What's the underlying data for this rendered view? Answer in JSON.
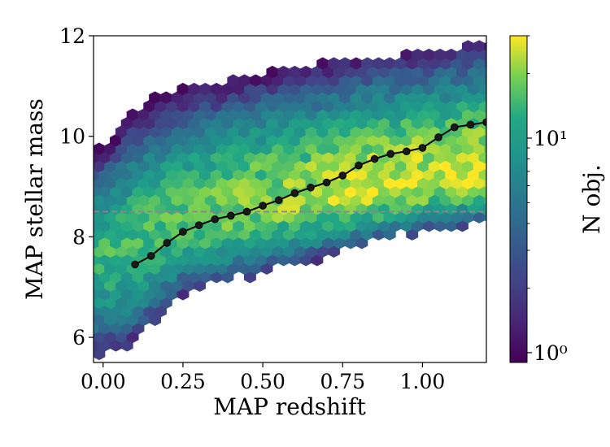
{
  "chart_data": {
    "type": "heatmap",
    "subtype": "hexbin-density-with-median-line",
    "xlabel": "MAP redshift",
    "ylabel": "MAP stellar mass",
    "xlim": [
      -0.03,
      1.2
    ],
    "ylim": [
      5.5,
      12.0
    ],
    "x_ticks": [
      0.0,
      0.25,
      0.5,
      0.75,
      1.0
    ],
    "x_tick_labels": [
      "0.00",
      "0.25",
      "0.50",
      "0.75",
      "1.00"
    ],
    "y_ticks": [
      6,
      8,
      10,
      12
    ],
    "y_tick_labels": [
      "6",
      "8",
      "10",
      "12"
    ],
    "grid": false,
    "colorbar": {
      "label": "N obj.",
      "scale": "log",
      "range": [
        0.9,
        30
      ],
      "colormap": "viridis",
      "tick_labels": [
        {
          "value": 1,
          "text": "10⁰"
        },
        {
          "value": 10,
          "text": "10¹"
        }
      ]
    },
    "reference_line": {
      "y": 8.5,
      "style": "dashed",
      "color": "#888888"
    },
    "median_line": {
      "color": "#000000",
      "x": [
        0.1,
        0.15,
        0.2,
        0.25,
        0.3,
        0.35,
        0.4,
        0.45,
        0.5,
        0.55,
        0.6,
        0.65,
        0.7,
        0.75,
        0.8,
        0.85,
        0.9,
        0.95,
        1.0,
        1.05,
        1.1,
        1.15,
        1.2
      ],
      "y": [
        7.45,
        7.62,
        7.88,
        8.1,
        8.23,
        8.35,
        8.42,
        8.5,
        8.62,
        8.73,
        8.87,
        8.98,
        9.08,
        9.22,
        9.42,
        9.55,
        9.65,
        9.7,
        9.77,
        9.98,
        10.18,
        10.23,
        10.28
      ]
    },
    "density_model": {
      "lower_edge": [
        [
          0.0,
          5.7
        ],
        [
          0.1,
          6.0
        ],
        [
          0.25,
          6.9
        ],
        [
          0.5,
          7.4
        ],
        [
          0.75,
          7.8
        ],
        [
          1.0,
          8.2
        ],
        [
          1.2,
          8.3
        ]
      ],
      "upper_edge": [
        [
          0.0,
          9.8
        ],
        [
          0.1,
          10.5
        ],
        [
          0.25,
          10.9
        ],
        [
          0.5,
          11.2
        ],
        [
          0.75,
          11.4
        ],
        [
          1.0,
          11.6
        ],
        [
          1.2,
          11.8
        ]
      ],
      "ridge": [
        [
          0.0,
          7.6
        ],
        [
          0.25,
          8.4
        ],
        [
          0.5,
          8.65
        ],
        [
          0.75,
          8.9
        ],
        [
          0.95,
          9.1
        ],
        [
          1.2,
          9.3
        ]
      ],
      "peak_count": 25
    }
  }
}
